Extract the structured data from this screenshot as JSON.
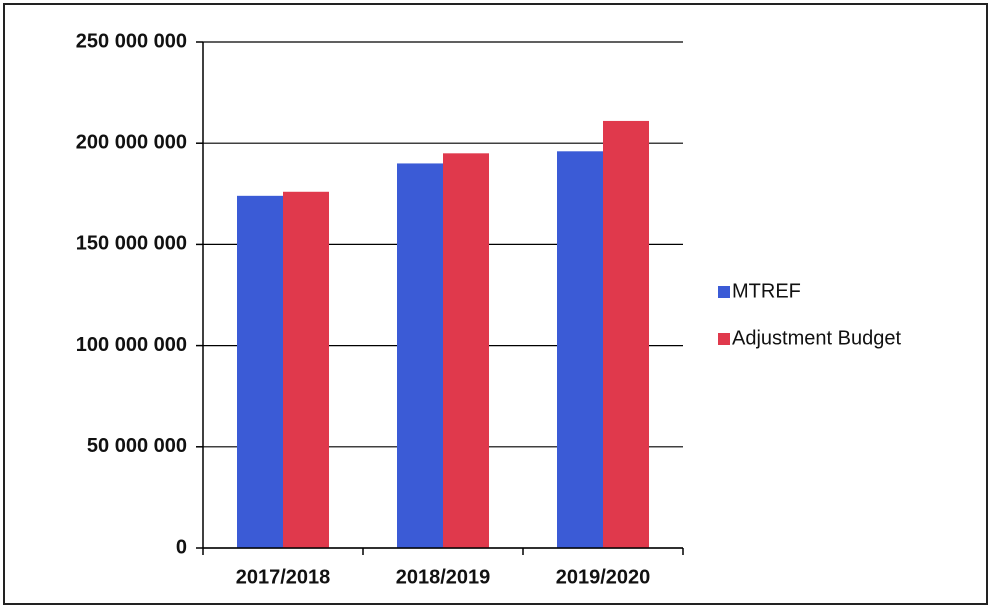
{
  "chart_data": {
    "type": "bar",
    "categories": [
      "2017/2018",
      "2018/2019",
      "2019/2020"
    ],
    "series": [
      {
        "name": "MTREF",
        "color": "#3b5bd6",
        "values": [
          174000000,
          190000000,
          196000000
        ]
      },
      {
        "name": "Adjustment Budget",
        "color": "#e0394c",
        "values": [
          176000000,
          195000000,
          211000000
        ]
      }
    ],
    "ylim": [
      0,
      250000000
    ],
    "yticks": [
      {
        "value": 0,
        "label": "0"
      },
      {
        "value": 50000000,
        "label": "50 000 000"
      },
      {
        "value": 100000000,
        "label": "100 000 000"
      },
      {
        "value": 150000000,
        "label": "150 000 000"
      },
      {
        "value": 200000000,
        "label": "200 000 000"
      },
      {
        "value": 250000000,
        "label": "250 000 000"
      }
    ],
    "grid": true,
    "legend": "right"
  }
}
